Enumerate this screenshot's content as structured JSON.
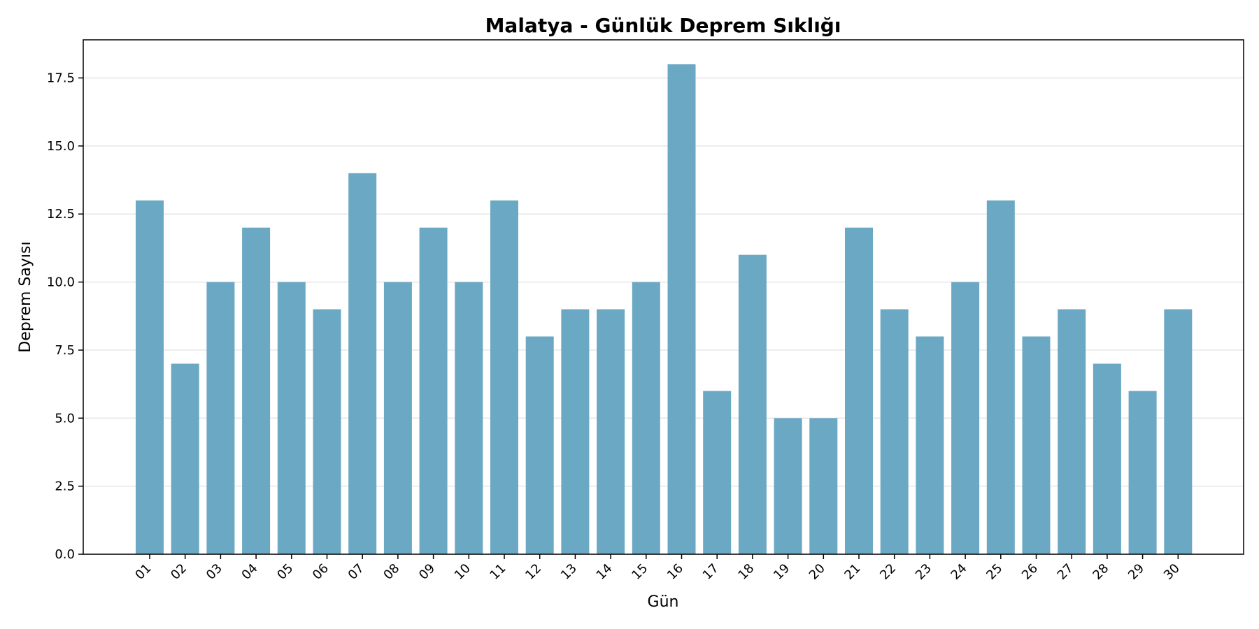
{
  "chart_data": {
    "type": "bar",
    "title": "Malatya - Günlük Deprem Sıklığı",
    "xlabel": "Gün",
    "ylabel": "Deprem Sayısı",
    "categories": [
      "01",
      "02",
      "03",
      "04",
      "05",
      "06",
      "07",
      "08",
      "09",
      "10",
      "11",
      "12",
      "13",
      "14",
      "15",
      "16",
      "17",
      "18",
      "19",
      "20",
      "21",
      "22",
      "23",
      "24",
      "25",
      "26",
      "27",
      "28",
      "29",
      "30"
    ],
    "values": [
      13,
      7,
      10,
      12,
      10,
      9,
      14,
      10,
      12,
      10,
      13,
      8,
      9,
      9,
      10,
      18,
      6,
      11,
      5,
      5,
      12,
      9,
      8,
      10,
      13,
      8,
      9,
      7,
      6,
      9
    ],
    "ylim": [
      0,
      18.9
    ],
    "yticks": [
      "0.0",
      "2.5",
      "5.0",
      "7.5",
      "10.0",
      "12.5",
      "15.0",
      "17.5"
    ],
    "grid": "horizontal",
    "bar_color": "#6aa8c4",
    "grid_color": "#e6e6e6"
  }
}
